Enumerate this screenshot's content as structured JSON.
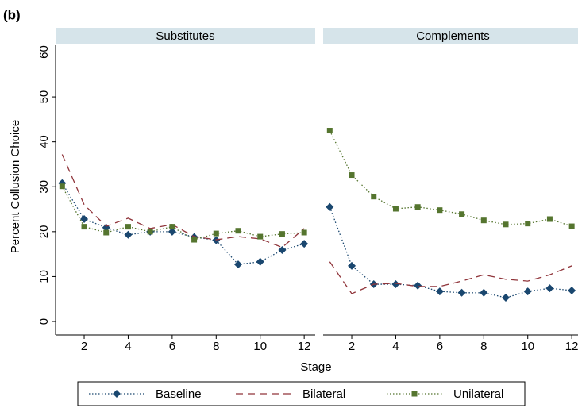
{
  "label": "(b)",
  "ylabel": "Percent Collusion Choice",
  "xlabel": "Stage",
  "chart_data": [
    {
      "type": "line",
      "title": "Substitutes",
      "xlim": [
        0.7,
        12.5
      ],
      "ylim": [
        -3,
        61.5
      ],
      "xticks": [
        2,
        4,
        6,
        8,
        10,
        12
      ],
      "yticks": [
        0,
        10,
        20,
        30,
        40,
        50,
        60
      ],
      "x": [
        1,
        2,
        3,
        4,
        5,
        6,
        7,
        8,
        9,
        10,
        11,
        12
      ],
      "series": [
        {
          "name": "Baseline",
          "color": "#1a476f",
          "dash": "dotted",
          "marker": "diamond",
          "values": [
            30.8,
            22.8,
            20.9,
            19.3,
            20.0,
            20.0,
            18.8,
            18.1,
            12.7,
            13.3,
            15.9,
            17.3
          ]
        },
        {
          "name": "Bilateral",
          "color": "#90353b",
          "dash": "dashed",
          "marker": "none",
          "values": [
            37.2,
            26.0,
            21.2,
            23.0,
            20.7,
            21.6,
            18.9,
            18.2,
            18.9,
            18.4,
            16.5,
            20.7
          ]
        },
        {
          "name": "Unilateral",
          "color": "#55752f",
          "dash": "dotted",
          "marker": "square",
          "values": [
            30.1,
            21.1,
            19.8,
            21.1,
            20.0,
            21.1,
            18.2,
            19.6,
            20.2,
            18.9,
            19.5,
            19.8
          ]
        }
      ]
    },
    {
      "type": "line",
      "title": "Complements",
      "xlim": [
        0.7,
        12.5
      ],
      "ylim": [
        -3,
        61.5
      ],
      "xticks": [
        2,
        4,
        6,
        8,
        10,
        12
      ],
      "x": [
        1,
        2,
        3,
        4,
        5,
        6,
        7,
        8,
        9,
        10,
        11,
        12
      ],
      "series": [
        {
          "name": "Baseline",
          "color": "#1a476f",
          "dash": "dotted",
          "marker": "diamond",
          "values": [
            25.5,
            12.4,
            8.3,
            8.3,
            8.0,
            6.7,
            6.4,
            6.4,
            5.3,
            6.7,
            7.4,
            6.9
          ]
        },
        {
          "name": "Bilateral",
          "color": "#90353b",
          "dash": "dashed",
          "marker": "none",
          "values": [
            13.3,
            6.2,
            8.3,
            8.5,
            7.8,
            7.8,
            9.0,
            10.4,
            9.4,
            9.0,
            10.4,
            12.4
          ]
        },
        {
          "name": "Unilateral",
          "color": "#55752f",
          "dash": "dotted",
          "marker": "square",
          "values": [
            42.5,
            32.6,
            27.8,
            25.1,
            25.5,
            24.8,
            23.9,
            22.5,
            21.6,
            21.8,
            22.8,
            21.2
          ]
        }
      ]
    }
  ]
}
